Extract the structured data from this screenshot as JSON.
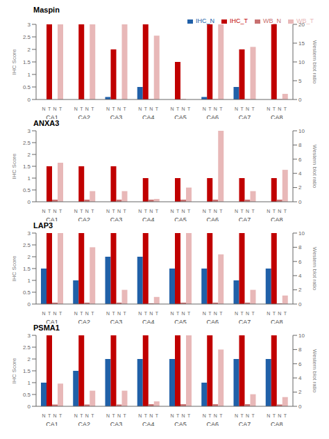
{
  "chart_data": [
    {
      "type": "bar",
      "title": "Maspin",
      "ylabel": "IHC Score",
      "y2label": "Western blot ratio",
      "categories": [
        "CA1",
        "CA2",
        "CA3",
        "CA4",
        "CA5",
        "CA6",
        "CA7",
        "CA8"
      ],
      "annotations": [
        "N",
        "T",
        "N",
        "T"
      ],
      "series": [
        {
          "name": "IHC_N",
          "color": "#2060a8",
          "values": [
            0,
            0,
            0.1,
            0.5,
            0,
            0.1,
            0.5,
            0
          ]
        },
        {
          "name": "IHC_T",
          "color": "#c00000",
          "values": [
            3,
            3,
            2,
            3,
            1.5,
            3,
            2,
            3
          ]
        },
        {
          "name": "WB_N",
          "color": "#c87070",
          "axis": "y2",
          "values": [
            0,
            0,
            0,
            0.1,
            0.1,
            0.1,
            0.1,
            0.1
          ]
        },
        {
          "name": "WB_T",
          "color": "#e8b8b8",
          "axis": "y2",
          "values": [
            20,
            20,
            20,
            17,
            0,
            20,
            14,
            1.5
          ]
        }
      ],
      "ylim": [
        0,
        3
      ],
      "yticks": [
        0,
        0.5,
        1,
        1.5,
        2,
        2.5,
        3
      ],
      "y2lim": [
        0,
        20
      ],
      "y2ticks": [
        0,
        5,
        10,
        15,
        20
      ],
      "grid": false,
      "legend": "upper right"
    },
    {
      "type": "bar",
      "title": "ANXA3",
      "ylabel": "IHC Score",
      "y2label": "Western blot ratio",
      "categories": [
        "CA1",
        "CA2",
        "CA3",
        "CA4",
        "CA5",
        "CA6",
        "CA7",
        "CA8"
      ],
      "annotations": [
        "N",
        "T",
        "N",
        "T"
      ],
      "series": [
        {
          "name": "IHC_N",
          "color": "#2060a8",
          "values": [
            0,
            0,
            0,
            0,
            0,
            0,
            0,
            0
          ]
        },
        {
          "name": "IHC_T",
          "color": "#c00000",
          "values": [
            1.5,
            1.5,
            1.5,
            1,
            1,
            1,
            1,
            1
          ]
        },
        {
          "name": "WB_N",
          "color": "#c87070",
          "axis": "y2",
          "values": [
            0.3,
            0.3,
            0.3,
            0.3,
            0.3,
            0.3,
            0.3,
            0.3
          ]
        },
        {
          "name": "WB_T",
          "color": "#e8b8b8",
          "axis": "y2",
          "values": [
            5.5,
            1.5,
            1.5,
            0.4,
            2,
            10,
            1.5,
            4.5
          ]
        }
      ],
      "ylim": [
        0,
        3
      ],
      "yticks": [
        0,
        0.5,
        1,
        1.5,
        2,
        2.5,
        3
      ],
      "y2lim": [
        0,
        10
      ],
      "y2ticks": [
        0,
        2,
        4,
        6,
        8,
        10
      ],
      "grid": false,
      "legend": false
    },
    {
      "type": "bar",
      "title": "LAP3",
      "ylabel": "IHC Score",
      "y2label": "Western blot ratio",
      "categories": [
        "CA1",
        "CA2",
        "CA3",
        "CA4",
        "CA5",
        "CA6",
        "CA7",
        "CA8"
      ],
      "annotations": [
        "N",
        "T",
        "N",
        "T"
      ],
      "series": [
        {
          "name": "IHC_N",
          "color": "#2060a8",
          "values": [
            1.5,
            1,
            2,
            2,
            1.5,
            1.5,
            1,
            1.5
          ]
        },
        {
          "name": "IHC_T",
          "color": "#c00000",
          "values": [
            3,
            3,
            3,
            3,
            3,
            3,
            3,
            3
          ]
        },
        {
          "name": "WB_N",
          "color": "#c87070",
          "axis": "y2",
          "values": [
            0.2,
            0.2,
            0.2,
            0.1,
            0.2,
            0.2,
            0.2,
            0.1
          ]
        },
        {
          "name": "WB_T",
          "color": "#e8b8b8",
          "axis": "y2",
          "values": [
            10,
            8,
            2,
            1,
            10,
            7,
            2,
            1.2
          ]
        }
      ],
      "ylim": [
        0,
        3
      ],
      "yticks": [
        0,
        0.5,
        1,
        1.5,
        2,
        2.5,
        3
      ],
      "y2lim": [
        0,
        10
      ],
      "y2ticks": [
        0,
        2,
        4,
        6,
        8,
        10
      ],
      "grid": false,
      "legend": false
    },
    {
      "type": "bar",
      "title": "PSMA1",
      "ylabel": "IHC Score",
      "y2label": "Western blot ratio",
      "categories": [
        "CA1",
        "CA2",
        "CA3",
        "CA4",
        "CA5",
        "CA6",
        "CA7",
        "CA8"
      ],
      "annotations": [
        "N",
        "T",
        "N",
        "T"
      ],
      "series": [
        {
          "name": "IHC_N",
          "color": "#2060a8",
          "values": [
            1,
            1.5,
            2,
            2,
            2,
            1,
            2,
            2
          ]
        },
        {
          "name": "IHC_T",
          "color": "#c00000",
          "values": [
            3,
            3,
            3,
            3,
            3,
            3,
            3,
            3
          ]
        },
        {
          "name": "WB_N",
          "color": "#c87070",
          "axis": "y2",
          "values": [
            0.25,
            0.25,
            0.25,
            0.3,
            0.3,
            0.3,
            0.3,
            0.25
          ]
        },
        {
          "name": "WB_T",
          "color": "#e8b8b8",
          "axis": "y2",
          "values": [
            3.2,
            2.2,
            2.2,
            0.7,
            10,
            8,
            1.7,
            1.3
          ]
        }
      ],
      "ylim": [
        0,
        3
      ],
      "yticks": [
        0,
        0.5,
        1,
        1.5,
        2,
        2.5,
        3
      ],
      "y2lim": [
        0,
        10
      ],
      "y2ticks": [
        0,
        2,
        4,
        6,
        8,
        10
      ],
      "grid": false,
      "legend": false
    }
  ]
}
